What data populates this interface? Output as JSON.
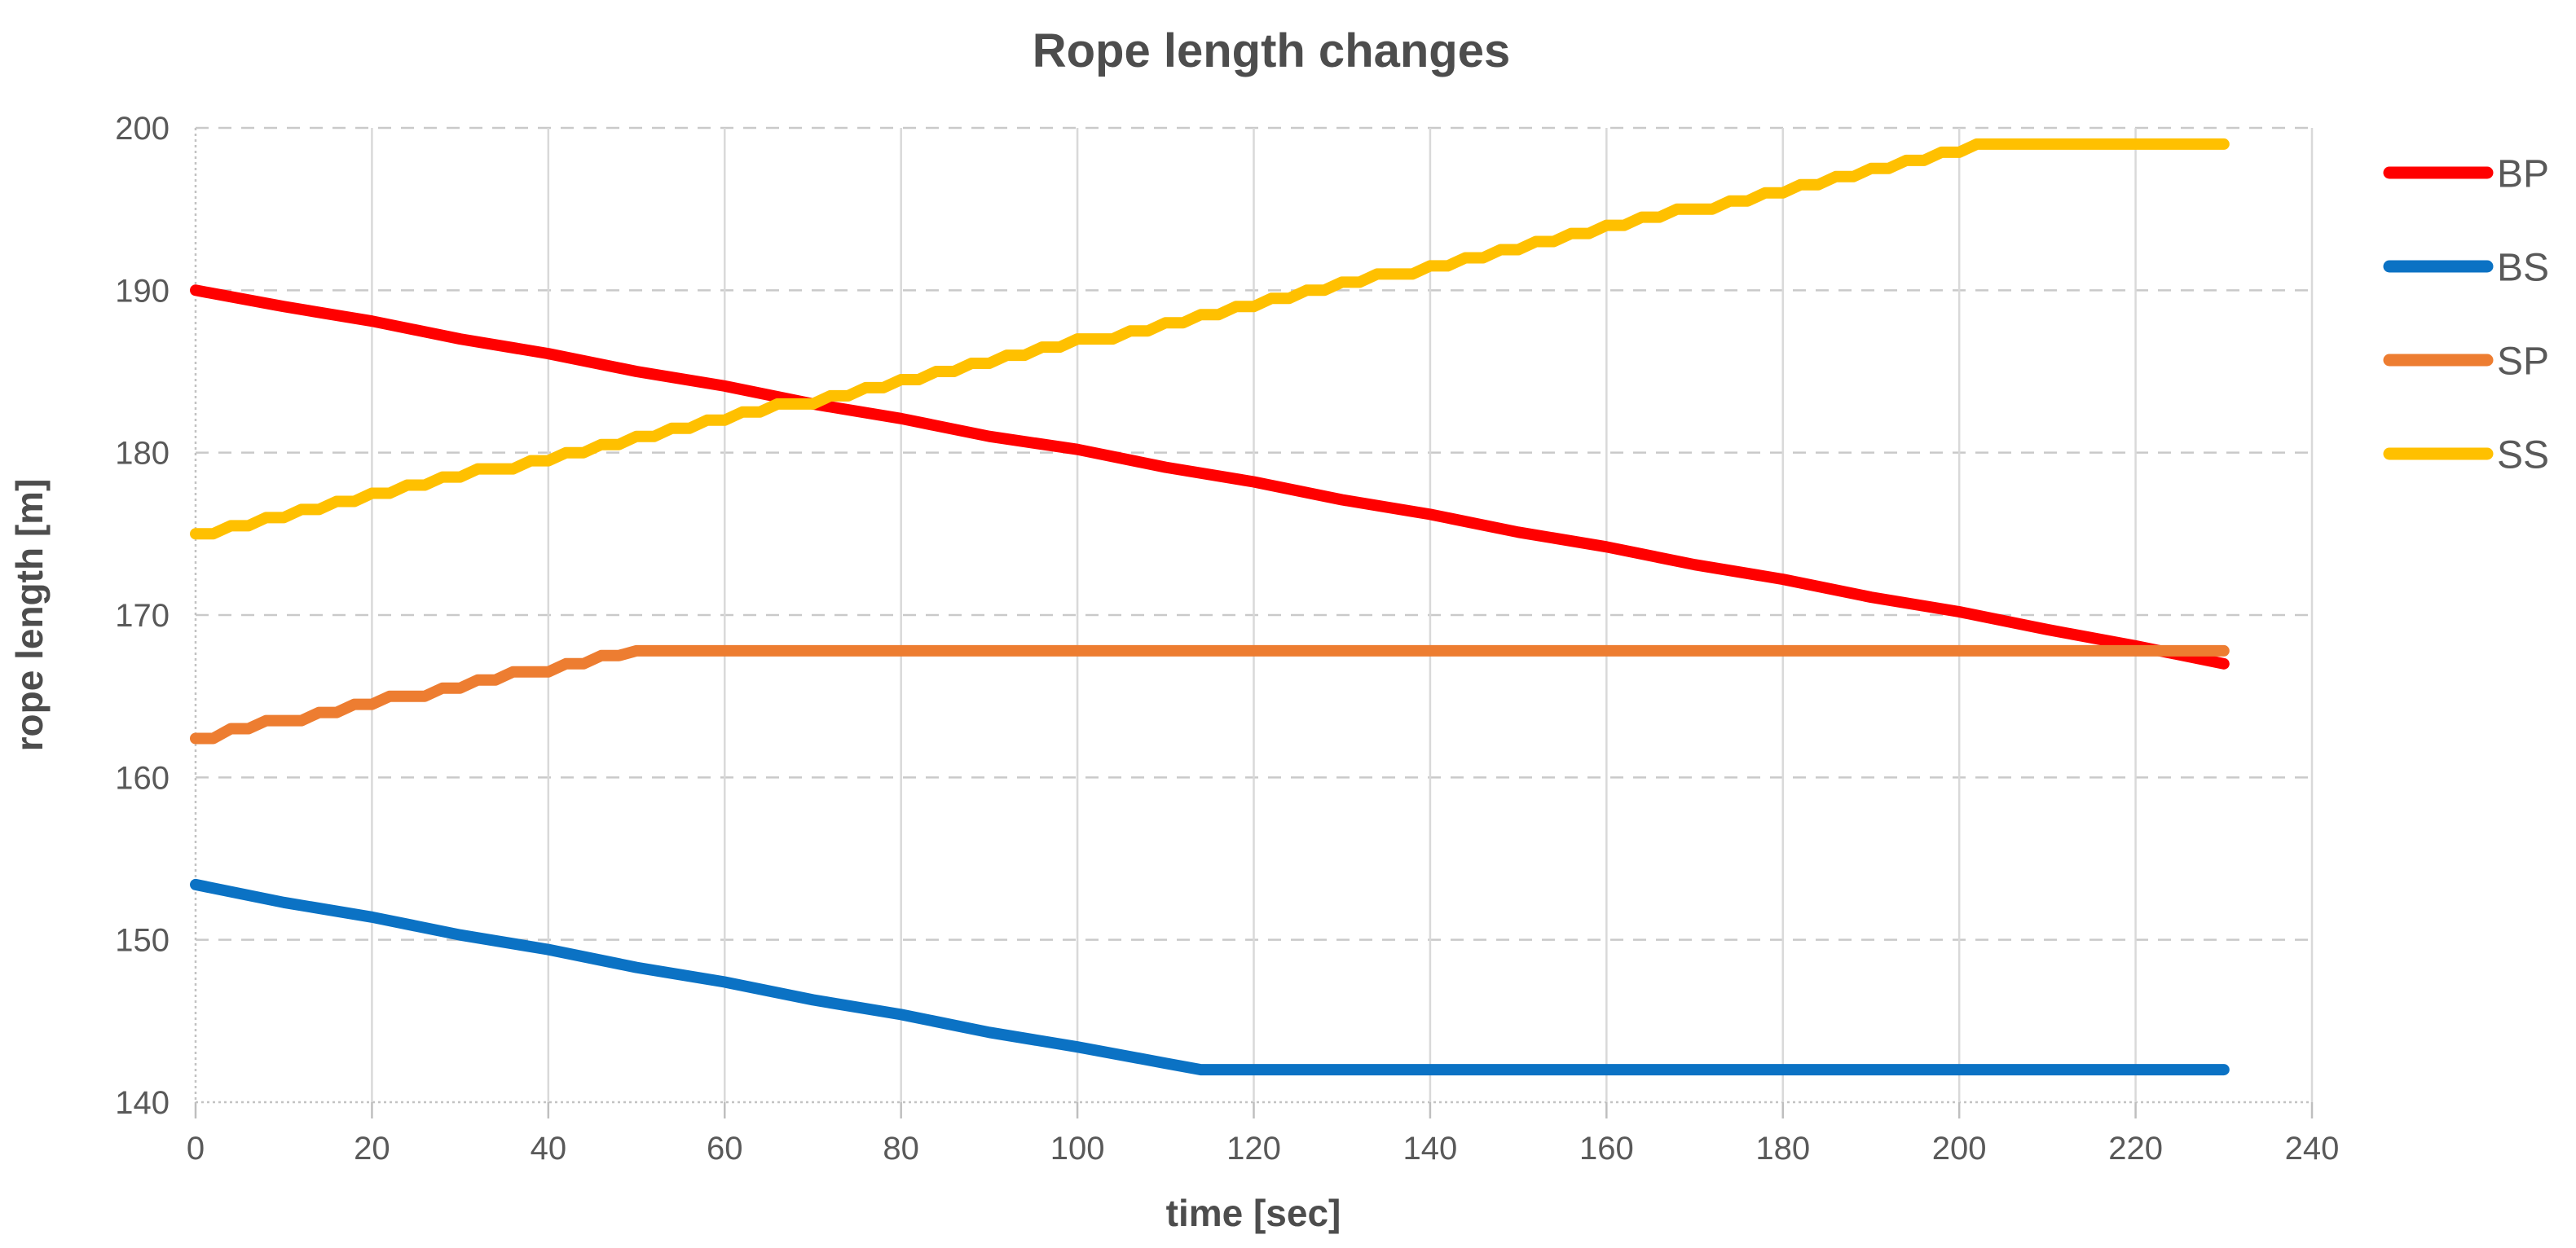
{
  "chart_data": {
    "type": "line",
    "title": "Rope length changes",
    "xlabel": "time [sec]",
    "ylabel": "rope length [m]",
    "xlim": [
      0,
      240
    ],
    "ylim": [
      140,
      200
    ],
    "xticks": [
      0,
      20,
      40,
      60,
      80,
      100,
      120,
      140,
      160,
      180,
      200,
      220,
      240
    ],
    "yticks": [
      140,
      150,
      160,
      170,
      180,
      190,
      200
    ],
    "grid": {
      "vertical": "solid",
      "horizontal": "dashed",
      "grid_on": true
    },
    "legend_position": "right",
    "style": {
      "grid_color": "#d9d9d9",
      "dash_grid_color": "#c9c9c9",
      "axis_color": "#c3c3c3",
      "tick_color": "#bfbfbf",
      "text_color": "#595959",
      "title_color": "#4d4d4d",
      "background": "#ffffff",
      "line_width": 14
    },
    "series": [
      {
        "name": "BP",
        "color": "#ff0000",
        "points": [
          [
            0,
            190
          ],
          [
            10,
            189
          ],
          [
            20,
            188.1
          ],
          [
            30,
            187
          ],
          [
            40,
            186.1
          ],
          [
            50,
            185
          ],
          [
            60,
            184.1
          ],
          [
            70,
            183
          ],
          [
            80,
            182.1
          ],
          [
            90,
            181
          ],
          [
            100,
            180.2
          ],
          [
            110,
            179.1
          ],
          [
            120,
            178.2
          ],
          [
            130,
            177.1
          ],
          [
            140,
            176.2
          ],
          [
            150,
            175.1
          ],
          [
            160,
            174.2
          ],
          [
            170,
            173.1
          ],
          [
            180,
            172.2
          ],
          [
            190,
            171.1
          ],
          [
            200,
            170.2
          ],
          [
            210,
            169.1
          ],
          [
            220,
            168.1
          ],
          [
            230,
            167
          ]
        ]
      },
      {
        "name": "BS",
        "color": "#0b72c4",
        "points": [
          [
            0,
            153.4
          ],
          [
            10,
            152.3
          ],
          [
            20,
            151.4
          ],
          [
            30,
            150.3
          ],
          [
            40,
            149.4
          ],
          [
            50,
            148.3
          ],
          [
            60,
            147.4
          ],
          [
            70,
            146.3
          ],
          [
            80,
            145.4
          ],
          [
            90,
            144.3
          ],
          [
            100,
            143.4
          ],
          [
            110,
            142.4
          ],
          [
            114,
            142
          ],
          [
            230,
            142
          ]
        ]
      },
      {
        "name": "SP",
        "color": "#ed7d31",
        "points": [
          [
            0,
            162.4
          ],
          [
            2,
            162.4
          ],
          [
            4,
            163
          ],
          [
            6,
            163
          ],
          [
            8,
            163.5
          ],
          [
            12,
            163.5
          ],
          [
            14,
            164
          ],
          [
            16,
            164
          ],
          [
            18,
            164.5
          ],
          [
            20,
            164.5
          ],
          [
            22,
            165
          ],
          [
            26,
            165
          ],
          [
            28,
            165.5
          ],
          [
            30,
            165.5
          ],
          [
            32,
            166
          ],
          [
            34,
            166
          ],
          [
            36,
            166.5
          ],
          [
            40,
            166.5
          ],
          [
            42,
            167
          ],
          [
            44,
            167
          ],
          [
            46,
            167.5
          ],
          [
            48,
            167.5
          ],
          [
            50,
            167.8
          ],
          [
            230,
            167.8
          ]
        ]
      },
      {
        "name": "SS",
        "color": "#ffc000",
        "points": [
          [
            0,
            175
          ],
          [
            2,
            175
          ],
          [
            4,
            175.5
          ],
          [
            6,
            175.5
          ],
          [
            8,
            176
          ],
          [
            10,
            176
          ],
          [
            12,
            176.5
          ],
          [
            14,
            176.5
          ],
          [
            16,
            177
          ],
          [
            18,
            177
          ],
          [
            20,
            177.5
          ],
          [
            22,
            177.5
          ],
          [
            24,
            178
          ],
          [
            26,
            178
          ],
          [
            28,
            178.5
          ],
          [
            30,
            178.5
          ],
          [
            32,
            179
          ],
          [
            36,
            179
          ],
          [
            38,
            179.5
          ],
          [
            40,
            179.5
          ],
          [
            42,
            180
          ],
          [
            44,
            180
          ],
          [
            46,
            180.5
          ],
          [
            48,
            180.5
          ],
          [
            50,
            181
          ],
          [
            52,
            181
          ],
          [
            54,
            181.5
          ],
          [
            56,
            181.5
          ],
          [
            58,
            182
          ],
          [
            60,
            182
          ],
          [
            62,
            182.5
          ],
          [
            64,
            182.5
          ],
          [
            66,
            183
          ],
          [
            70,
            183
          ],
          [
            72,
            183.5
          ],
          [
            74,
            183.5
          ],
          [
            76,
            184
          ],
          [
            78,
            184
          ],
          [
            80,
            184.5
          ],
          [
            82,
            184.5
          ],
          [
            84,
            185
          ],
          [
            86,
            185
          ],
          [
            88,
            185.5
          ],
          [
            90,
            185.5
          ],
          [
            92,
            186
          ],
          [
            94,
            186
          ],
          [
            96,
            186.5
          ],
          [
            98,
            186.5
          ],
          [
            100,
            187
          ],
          [
            104,
            187
          ],
          [
            106,
            187.5
          ],
          [
            108,
            187.5
          ],
          [
            110,
            188
          ],
          [
            112,
            188
          ],
          [
            114,
            188.5
          ],
          [
            116,
            188.5
          ],
          [
            118,
            189
          ],
          [
            120,
            189
          ],
          [
            122,
            189.5
          ],
          [
            124,
            189.5
          ],
          [
            126,
            190
          ],
          [
            128,
            190
          ],
          [
            130,
            190.5
          ],
          [
            132,
            190.5
          ],
          [
            134,
            191
          ],
          [
            138,
            191
          ],
          [
            140,
            191.5
          ],
          [
            142,
            191.5
          ],
          [
            144,
            192
          ],
          [
            146,
            192
          ],
          [
            148,
            192.5
          ],
          [
            150,
            192.5
          ],
          [
            152,
            193
          ],
          [
            154,
            193
          ],
          [
            156,
            193.5
          ],
          [
            158,
            193.5
          ],
          [
            160,
            194
          ],
          [
            162,
            194
          ],
          [
            164,
            194.5
          ],
          [
            166,
            194.5
          ],
          [
            168,
            195
          ],
          [
            172,
            195
          ],
          [
            174,
            195.5
          ],
          [
            176,
            195.5
          ],
          [
            178,
            196
          ],
          [
            180,
            196
          ],
          [
            182,
            196.5
          ],
          [
            184,
            196.5
          ],
          [
            186,
            197
          ],
          [
            188,
            197
          ],
          [
            190,
            197.5
          ],
          [
            192,
            197.5
          ],
          [
            194,
            198
          ],
          [
            196,
            198
          ],
          [
            198,
            198.5
          ],
          [
            200,
            198.5
          ],
          [
            202,
            199
          ],
          [
            230,
            199
          ]
        ]
      }
    ]
  }
}
